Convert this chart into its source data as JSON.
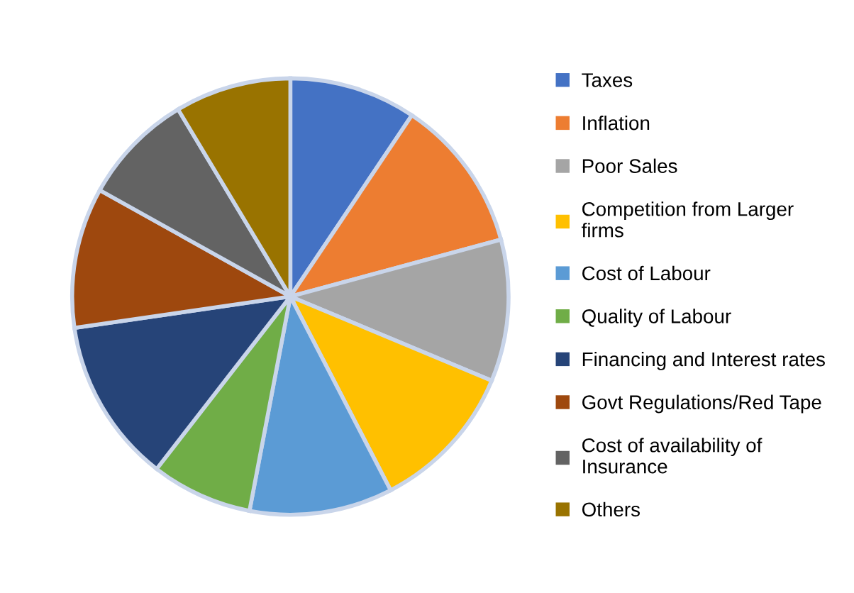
{
  "chart_data": {
    "type": "pie",
    "categories": [
      "Taxes",
      "Inflation",
      "Poor Sales",
      "Competition from Larger\nfirms",
      "Cost of Labour",
      "Quality of Labour",
      "Financing and Interest rates",
      "Govt Regulations/Red Tape",
      "Cost of availability of\nInsurance",
      "Others"
    ],
    "values": [
      9.4,
      11.4,
      10.5,
      11.1,
      10.6,
      7.5,
      12.2,
      10.4,
      8.3,
      8.6
    ],
    "colors": [
      "#4472c4",
      "#ed7d31",
      "#a5a5a5",
      "#ffc000",
      "#5b9bd5",
      "#70ad47",
      "#264478",
      "#9e480e",
      "#636363",
      "#997300"
    ],
    "legend": "right"
  }
}
